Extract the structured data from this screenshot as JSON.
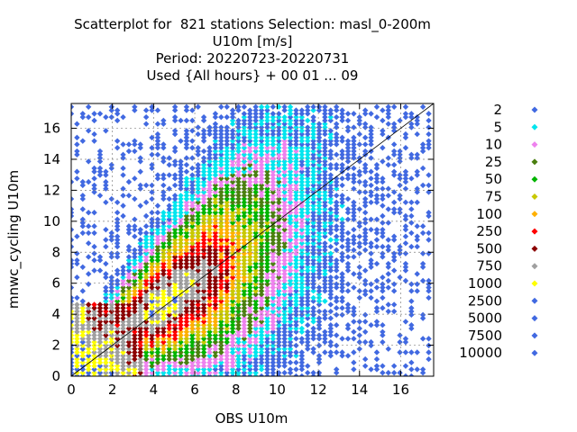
{
  "chart_data": {
    "type": "scatter",
    "title_lines": [
      "Scatterplot for  821 stations Selection: masl_0-200m",
      "U10m [m/s]",
      "Period: 20220723-20220731",
      "Used {All hours} + 00 01 ... 09"
    ],
    "xlabel": "OBS U10m",
    "ylabel": "mnwc_cycling U10m",
    "xlim": [
      0,
      17.6
    ],
    "ylim": [
      0,
      17.6
    ],
    "x_ticks": [
      0,
      2,
      4,
      6,
      8,
      10,
      12,
      14,
      16
    ],
    "y_ticks": [
      0,
      2,
      4,
      6,
      8,
      10,
      12,
      14,
      16
    ],
    "grid": true,
    "diagonal_line": true,
    "legend_position": "right",
    "series": [
      {
        "name": "2",
        "color": "#4169e1"
      },
      {
        "name": "5",
        "color": "#00e5ee"
      },
      {
        "name": "10",
        "color": "#ee82ee"
      },
      {
        "name": "25",
        "color": "#4a7f10"
      },
      {
        "name": "50",
        "color": "#00b400"
      },
      {
        "name": "75",
        "color": "#c8c800"
      },
      {
        "name": "100",
        "color": "#ffb000"
      },
      {
        "name": "250",
        "color": "#ff0000"
      },
      {
        "name": "500",
        "color": "#8b0000"
      },
      {
        "name": "750",
        "color": "#a0a0a0"
      },
      {
        "name": "1000",
        "color": "#ffff00"
      },
      {
        "name": "2500",
        "color": "#4169e1"
      },
      {
        "name": "5000",
        "color": "#4169e1"
      },
      {
        "name": "7500",
        "color": "#4169e1"
      },
      {
        "name": "10000",
        "color": "#4169e1"
      }
    ]
  }
}
